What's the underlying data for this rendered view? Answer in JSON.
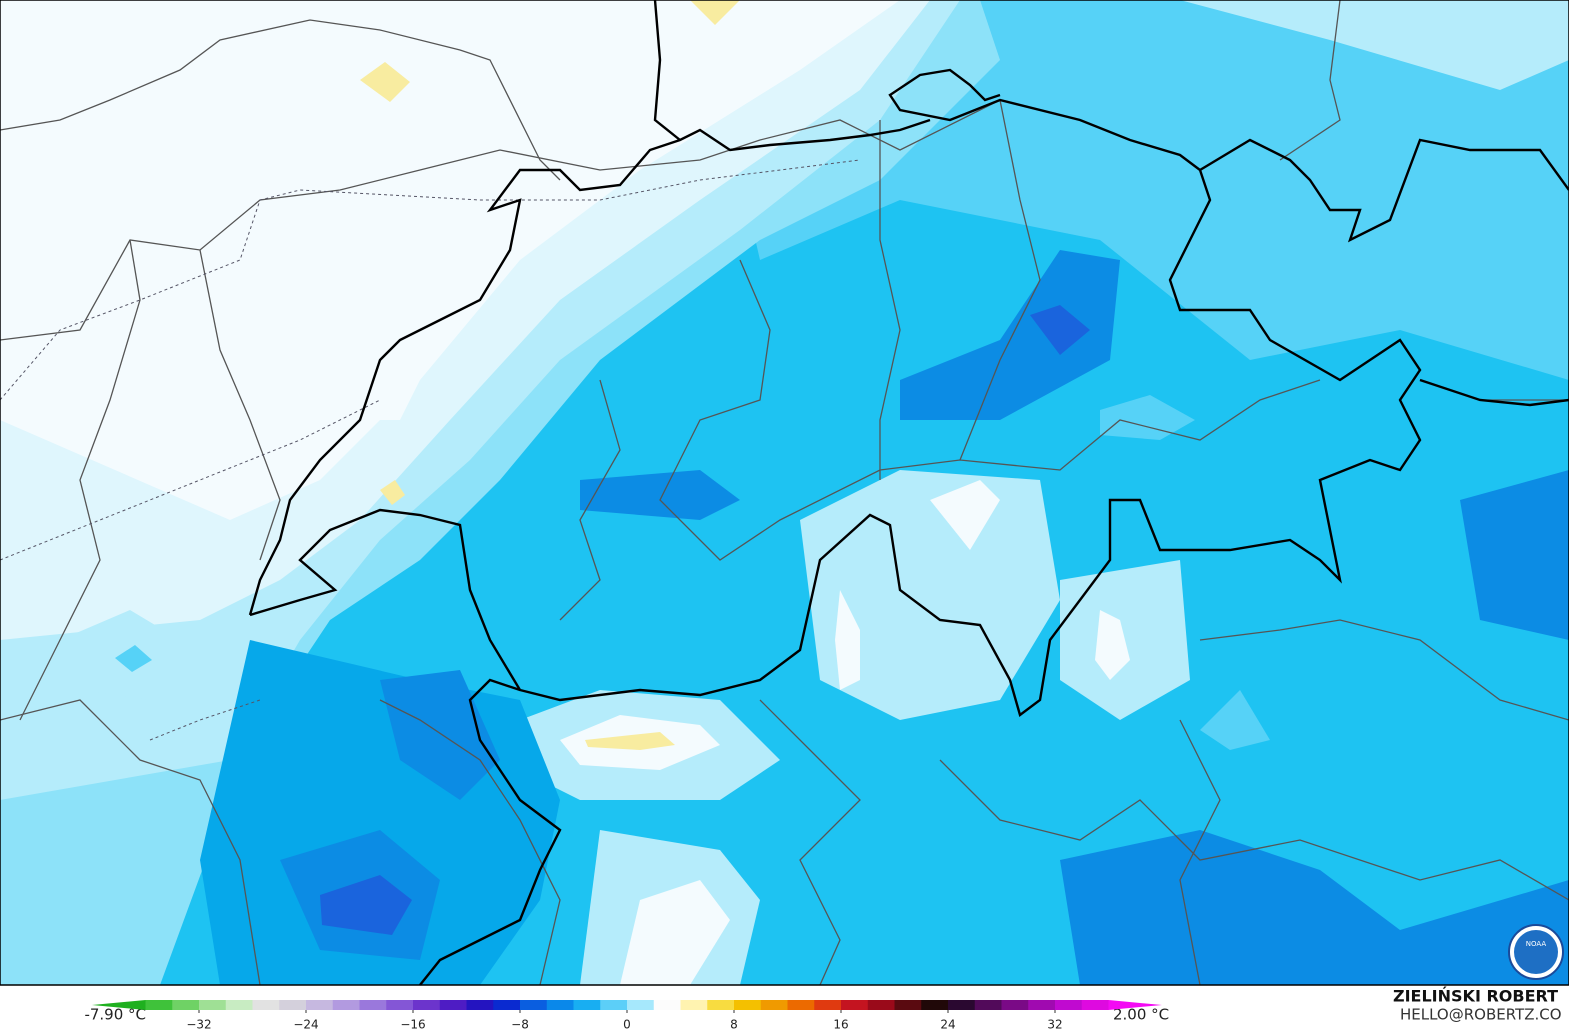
{
  "legend": {
    "min_label": "-7.90 °C",
    "max_label": "2.00 °C",
    "ticks": [
      {
        "value": -32,
        "label": "−32"
      },
      {
        "value": -24,
        "label": "−24"
      },
      {
        "value": -16,
        "label": "−16"
      },
      {
        "value": -8,
        "label": "−8"
      },
      0,
      8,
      16,
      24,
      32
    ],
    "colors": [
      "#1fb01f",
      "#3fc23a",
      "#6fd265",
      "#9fe095",
      "#c8ecc2",
      "#e2e2e2",
      "#d4d0dc",
      "#c6b8e0",
      "#b29ae0",
      "#9a78dc",
      "#8456d6",
      "#6c34cc",
      "#4e1cc4",
      "#2414c0",
      "#0a2ad0",
      "#0a5ee0",
      "#0a88ea",
      "#18aef2",
      "#5ccff8",
      "#a6e8fc",
      "#fcfcfc",
      "#fff3b0",
      "#f8dc40",
      "#f4c000",
      "#f09a00",
      "#ec6a00",
      "#e03a10",
      "#c41420",
      "#9a0a1a",
      "#5a0a10",
      "#200808",
      "#2a0830",
      "#520a5a",
      "#7a0a86",
      "#a00ab0",
      "#c00ad0",
      "#de0ae0",
      "#f40af4"
    ]
  },
  "credit": {
    "name": "ZIELIŃSKI ROBERT",
    "email": "HELLO@ROBERTZ.CO"
  },
  "logo": {
    "text": "NOAA"
  }
}
